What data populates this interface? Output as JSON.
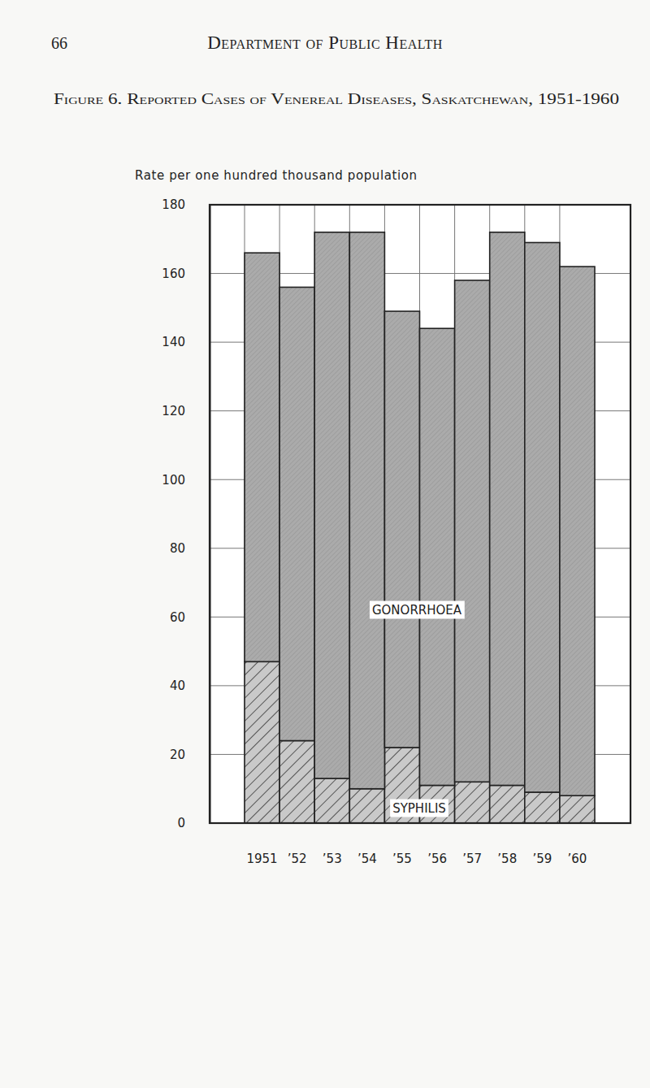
{
  "page": {
    "number": "66",
    "header": "Department of Public Health"
  },
  "chart_data": {
    "type": "bar",
    "stacked": true,
    "title": "Figure 6. Reported Cases of Venereal Diseases, Saskatchewan, 1951-1960",
    "y_label": "Rate per one hundred thousand population",
    "categories": [
      "1951",
      "’52",
      "’53",
      "’54",
      "’55",
      "’56",
      "’57",
      "’58",
      "’59",
      "’60"
    ],
    "series": [
      {
        "name": "SYPHILIS",
        "color": "#c9c9c9",
        "values": [
          47,
          24,
          13,
          10,
          22,
          11,
          12,
          11,
          9,
          8
        ]
      },
      {
        "name": "GONORRHOEA",
        "color": "#ababab",
        "values": [
          119,
          132,
          159,
          162,
          127,
          133,
          146,
          161,
          160,
          154
        ]
      }
    ],
    "ylim": [
      0,
      180
    ],
    "yticks": [
      0,
      20,
      40,
      60,
      80,
      100,
      120,
      140,
      160,
      180
    ],
    "grid": true
  }
}
